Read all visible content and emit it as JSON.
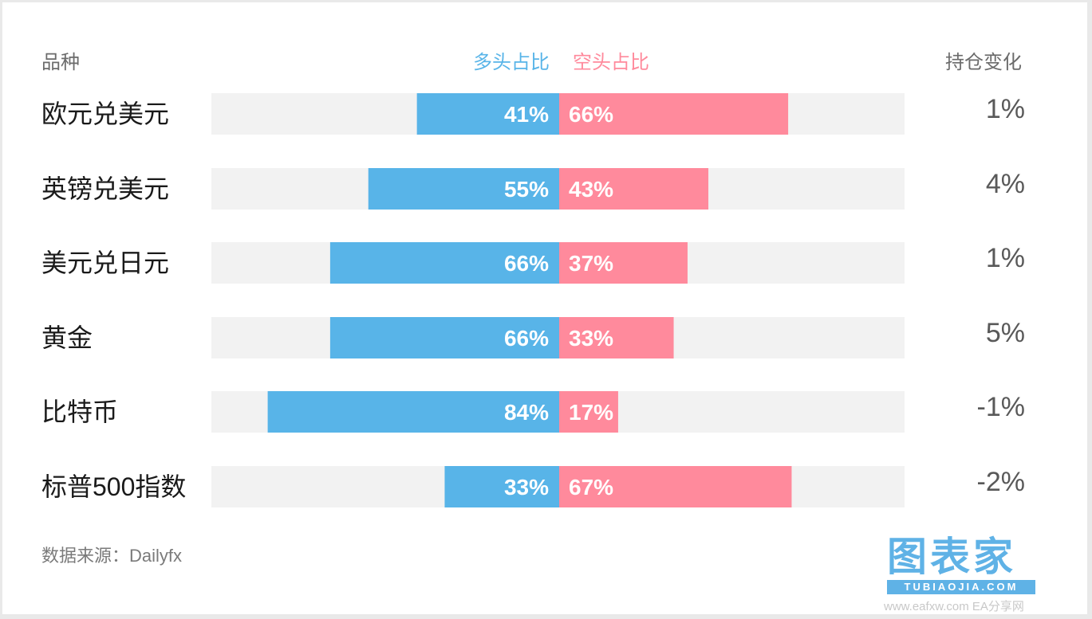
{
  "header": {
    "category_label": "品种",
    "long_label": "多头占比",
    "short_label": "空头占比",
    "change_label": "持仓变化"
  },
  "colors": {
    "long": "#58b4e8",
    "short": "#ff8a9c",
    "track": "#f2f2f2"
  },
  "chart_data": {
    "type": "bar",
    "categories": [
      "欧元兑美元",
      "英镑兑美元",
      "美元兑日元",
      "黄金",
      "比特币",
      "标普500指数"
    ],
    "series": [
      {
        "name": "多头占比",
        "values": [
          41,
          55,
          66,
          66,
          84,
          33
        ],
        "labels": [
          "41%",
          "55%",
          "66%",
          "66%",
          "84%",
          "33%"
        ]
      },
      {
        "name": "空头占比",
        "values": [
          66,
          43,
          37,
          33,
          17,
          67
        ],
        "labels": [
          "66%",
          "43%",
          "37%",
          "33%",
          "17%",
          "67%"
        ]
      }
    ],
    "position_change": [
      "1%",
      "4%",
      "1%",
      "5%",
      "-1%",
      "-2%"
    ],
    "orientation": "horizontal-diverging",
    "xlim": [
      0,
      100
    ]
  },
  "source": "数据来源：Dailyfx",
  "logo": {
    "main": "图表家",
    "sub": "TUBIAOJIA.COM"
  },
  "watermark": "www.eafxw.com EA分享网"
}
